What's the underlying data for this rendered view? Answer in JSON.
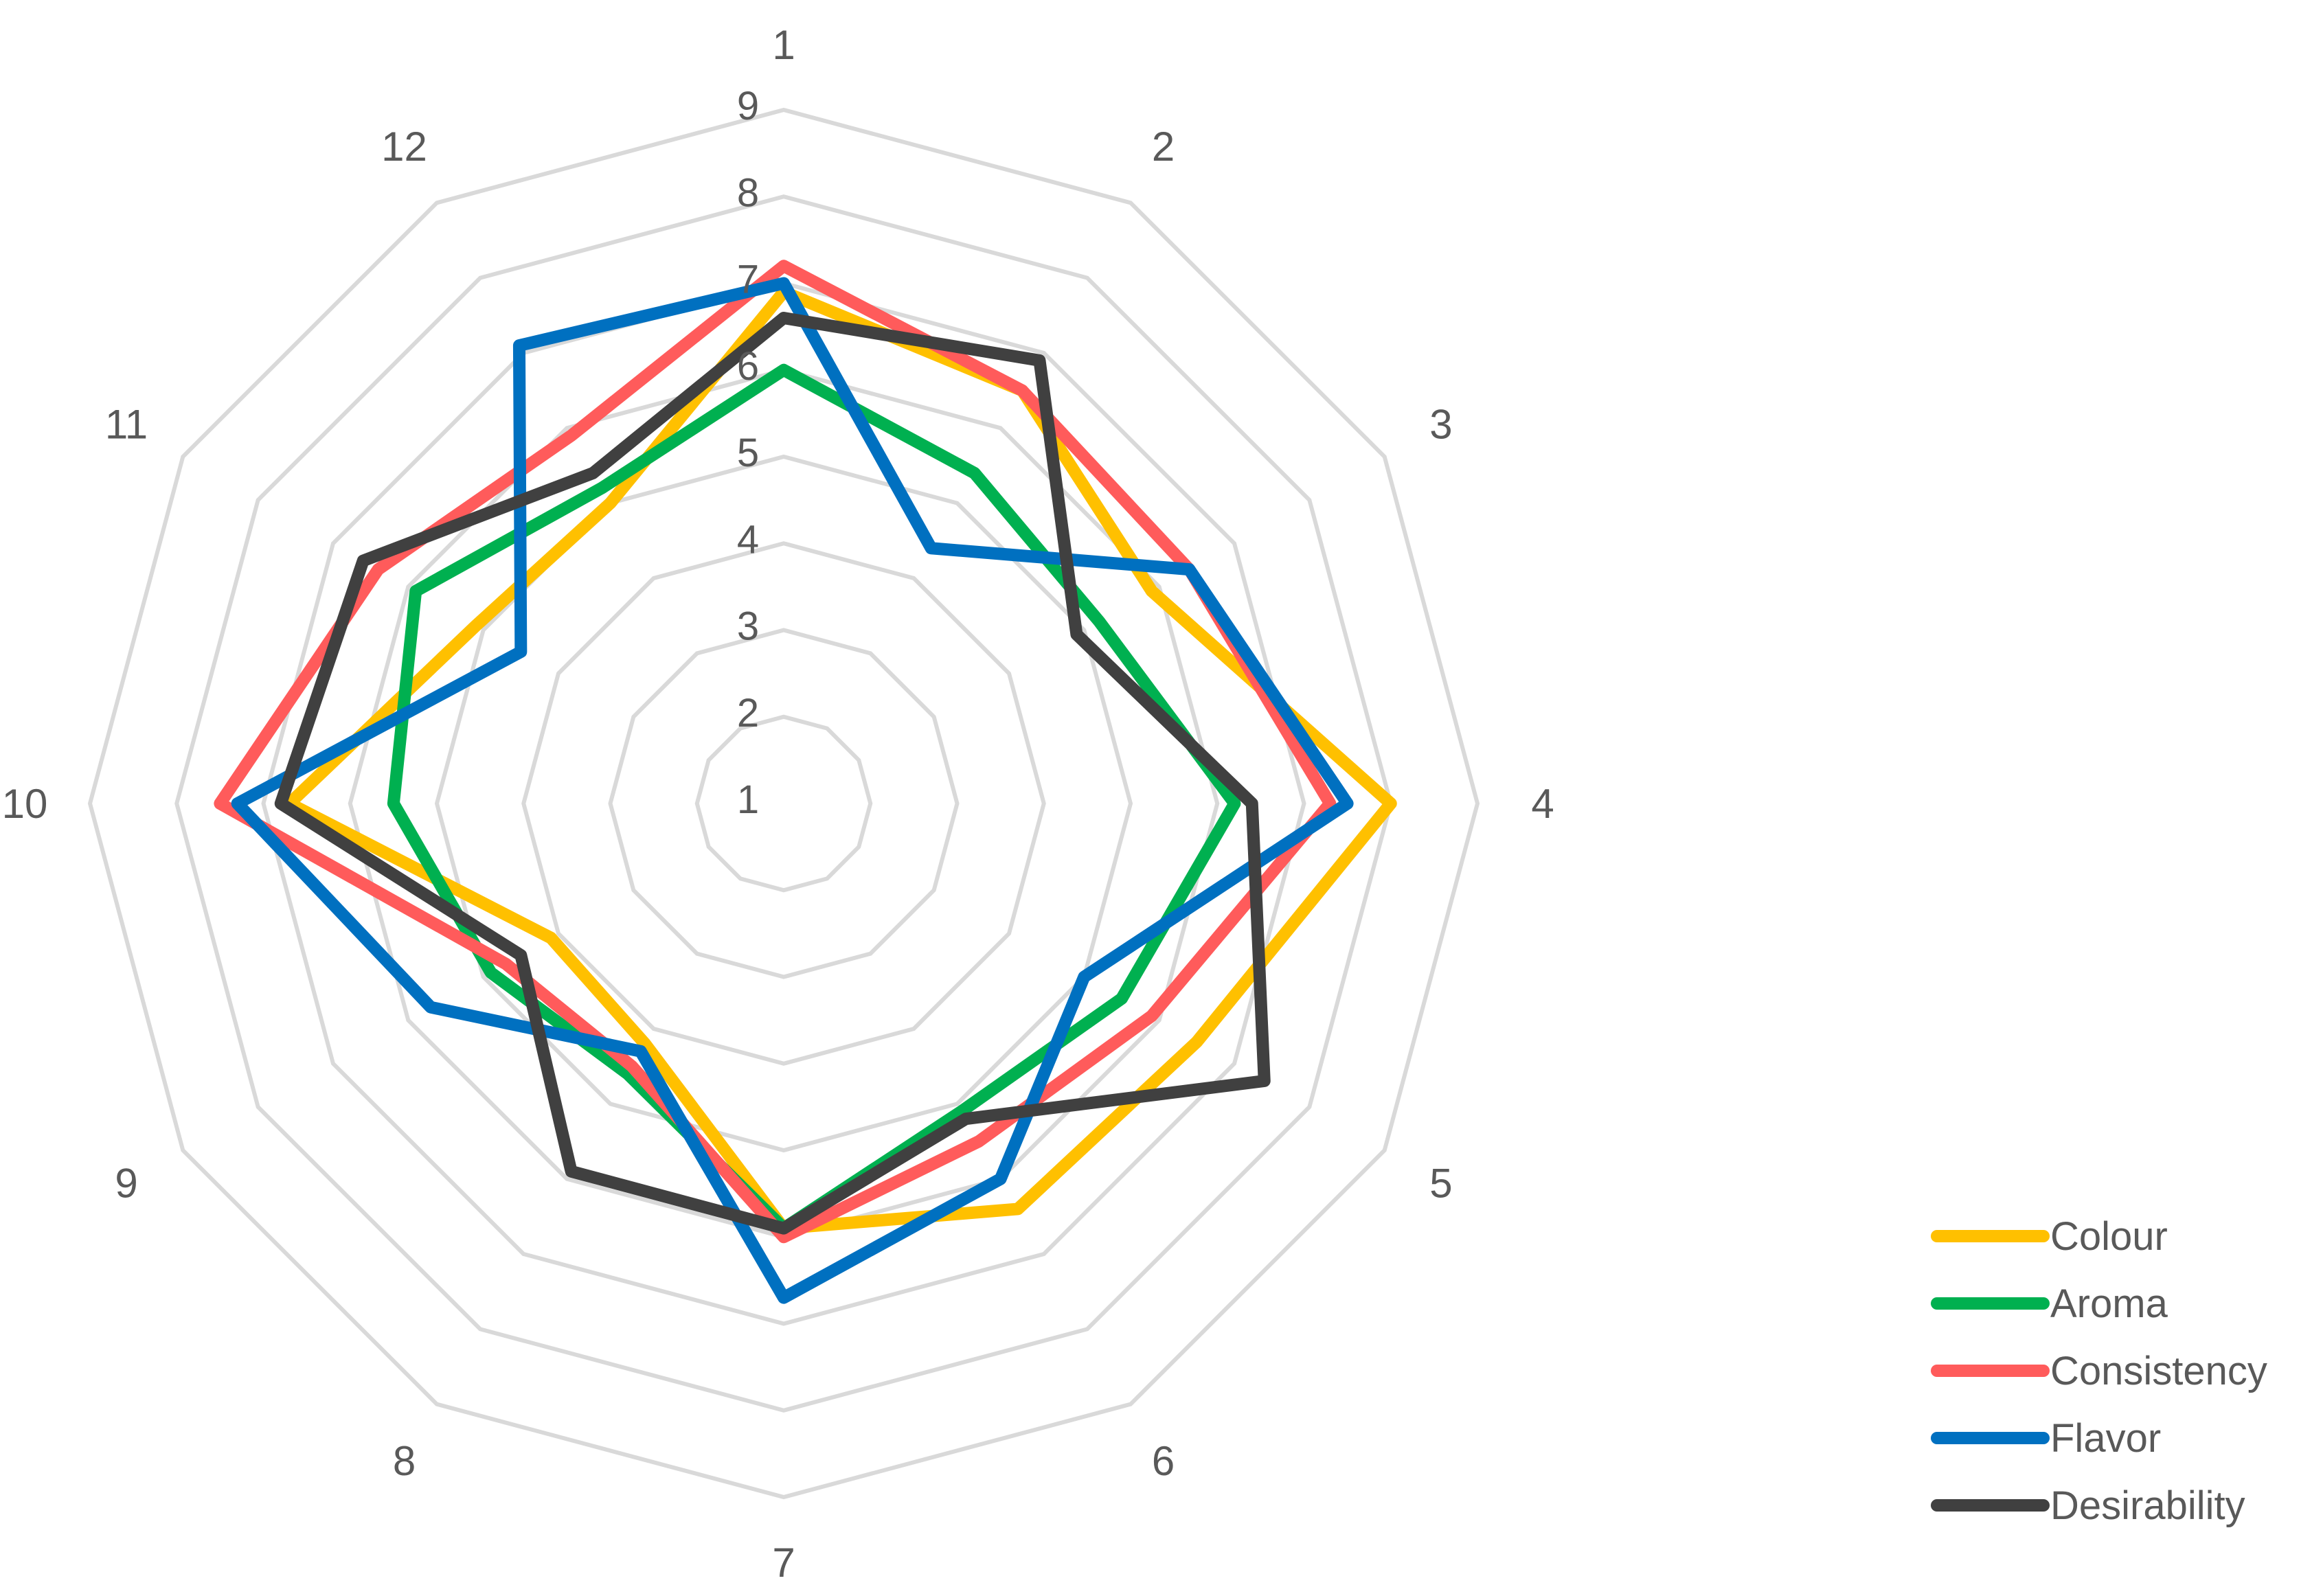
{
  "chart_data": {
    "type": "radar",
    "categories": [
      "1",
      "2",
      "3",
      "4",
      "5",
      "6",
      "7",
      "8",
      "9",
      "10",
      "11",
      "12"
    ],
    "ticks": [
      "1",
      "2",
      "3",
      "4",
      "5",
      "6",
      "7",
      "8",
      "9"
    ],
    "rlim": [
      1,
      9
    ],
    "grid": true,
    "legend_position": "bottom-right",
    "series": [
      {
        "name": "Colour",
        "color": "#FFC000",
        "values": [
          6.9,
          6.5,
          5.9,
          8.0,
          6.5,
          6.4,
          5.9,
          4.2,
          4.1,
          6.7,
          5.1,
          5.0
        ]
      },
      {
        "name": "Aroma",
        "color": "#00B050",
        "values": [
          6.0,
          5.4,
          5.2,
          6.2,
          5.5,
          5.1,
          5.9,
          4.6,
          4.9,
          5.5,
          5.9,
          5.2
        ]
      },
      {
        "name": "Consistency",
        "color": "#FF5B5B",
        "values": [
          7.2,
          6.5,
          6.4,
          7.3,
          5.9,
          5.5,
          6.0,
          4.5,
          4.7,
          7.5,
          6.4,
          5.9
        ]
      },
      {
        "name": "Flavor",
        "color": "#0070C0",
        "values": [
          7.0,
          4.4,
          6.4,
          7.5,
          5.0,
          6.0,
          6.7,
          4.3,
          5.7,
          7.3,
          4.5,
          7.1
        ]
      },
      {
        "name": "Desirability",
        "color": "#404040",
        "values": [
          6.6,
          6.9,
          4.9,
          6.4,
          7.4,
          5.2,
          5.9,
          5.9,
          4.5,
          6.8,
          6.6,
          5.4
        ]
      }
    ]
  }
}
